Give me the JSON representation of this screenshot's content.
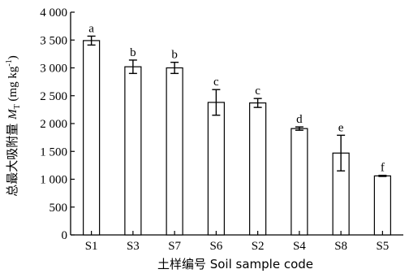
{
  "chart_data": {
    "type": "bar",
    "categories": [
      "S1",
      "S3",
      "S7",
      "S6",
      "S2",
      "S4",
      "S8",
      "S5"
    ],
    "values": [
      3490,
      3020,
      3000,
      2380,
      2370,
      1910,
      1470,
      1060
    ],
    "errors": [
      80,
      120,
      100,
      230,
      80,
      30,
      320,
      10
    ],
    "significance": [
      "a",
      "b",
      "b",
      "c",
      "c",
      "d",
      "e",
      "f"
    ],
    "xlabel": "土样编号 Soil sample code",
    "ylabel_main": "总最大吸附量 ",
    "ylabel_symbol": "M",
    "ylabel_subscript": "T",
    "ylabel_unit": " (mg kg",
    "ylabel_superscript": "-1",
    "ylabel_close": ")",
    "ylim": [
      0,
      4000
    ],
    "yticks": [
      0,
      500,
      1000,
      1500,
      2000,
      2500,
      3000,
      3500,
      4000
    ],
    "ytick_labels": [
      "0",
      "500",
      "1 000",
      "1 500",
      "2 000",
      "2 500",
      "3 000",
      "3 500",
      "4 000"
    ],
    "grid": false,
    "bar_fill": "#ffffff",
    "bar_stroke": "#000000"
  }
}
